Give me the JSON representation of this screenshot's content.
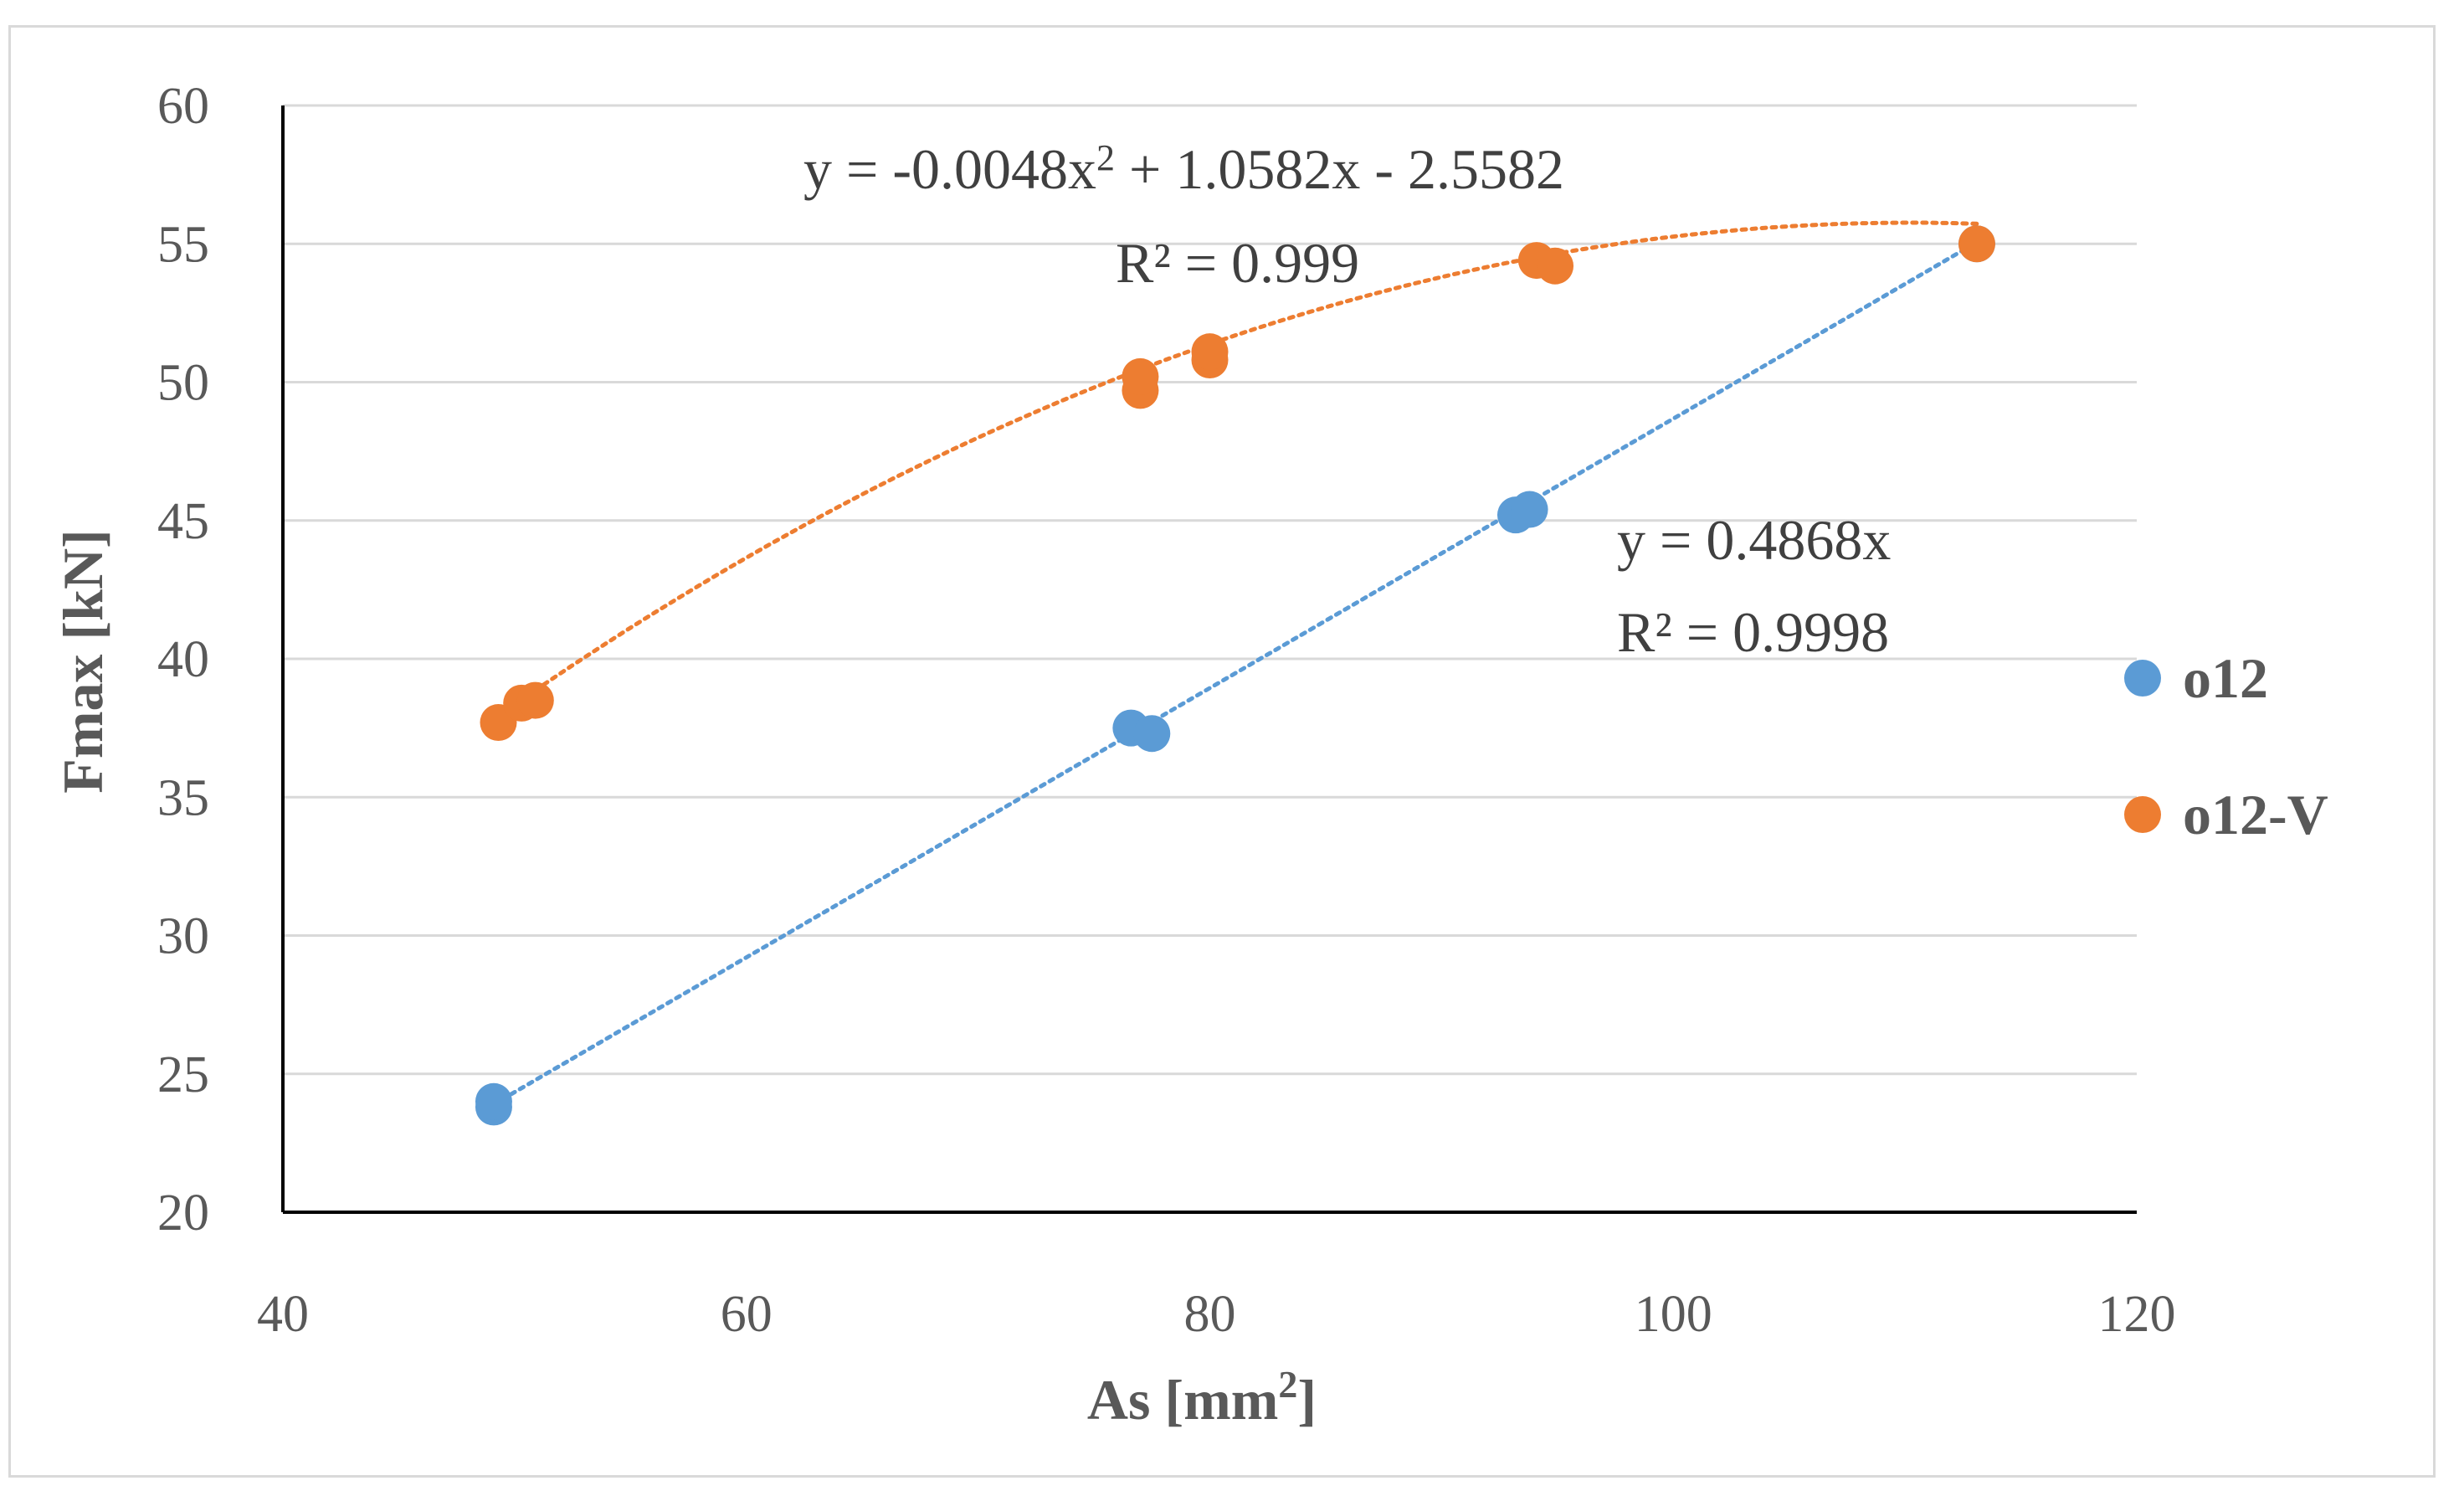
{
  "chart_data": {
    "type": "scatter",
    "title": "",
    "xlabel": "As [mm",
    "xlabel_sup": "2",
    "xlabel_end": "]",
    "ylabel": "Fmax [kN]",
    "xlim": [
      40,
      120
    ],
    "ylim": [
      20,
      60
    ],
    "xticks": [
      40,
      60,
      80,
      100,
      120
    ],
    "yticks": [
      20,
      25,
      30,
      35,
      40,
      45,
      50,
      55,
      60
    ],
    "grid": "horizontal",
    "legend_position": "right",
    "series": [
      {
        "name": "o12",
        "color": "#5b9bd5",
        "points": [
          {
            "x": 49.1,
            "y": 23.8
          },
          {
            "x": 49.1,
            "y": 24.0
          },
          {
            "x": 76.6,
            "y": 37.5
          },
          {
            "x": 77.5,
            "y": 37.3
          },
          {
            "x": 93.2,
            "y": 45.2
          },
          {
            "x": 93.8,
            "y": 45.4
          },
          {
            "x": 113.1,
            "y": 55.0
          }
        ],
        "trendline": {
          "type": "linear",
          "a": 0.4868,
          "b": 0,
          "x_range": [
            49.1,
            113.1
          ]
        },
        "equation": "y = 0.4868x",
        "r2": "R² = 0.9998"
      },
      {
        "name": "o12-V",
        "color": "#ed7d31",
        "points": [
          {
            "x": 49.3,
            "y": 37.7
          },
          {
            "x": 50.3,
            "y": 38.4
          },
          {
            "x": 50.9,
            "y": 38.5
          },
          {
            "x": 77.0,
            "y": 49.7
          },
          {
            "x": 77.0,
            "y": 50.2
          },
          {
            "x": 80.0,
            "y": 50.8
          },
          {
            "x": 80.0,
            "y": 51.1
          },
          {
            "x": 94.1,
            "y": 54.4
          },
          {
            "x": 94.9,
            "y": 54.2
          },
          {
            "x": 113.1,
            "y": 55.0
          }
        ],
        "trendline": {
          "type": "poly2",
          "a": -0.0048,
          "b": 1.0582,
          "c": -2.5582,
          "x_range": [
            50.9,
            113.1
          ]
        },
        "equation_prefix": "y = -0.0048x",
        "equation_sup": "2",
        "equation_suffix": " + 1.0582x - 2.5582",
        "r2": "R² = 0.999"
      }
    ]
  }
}
